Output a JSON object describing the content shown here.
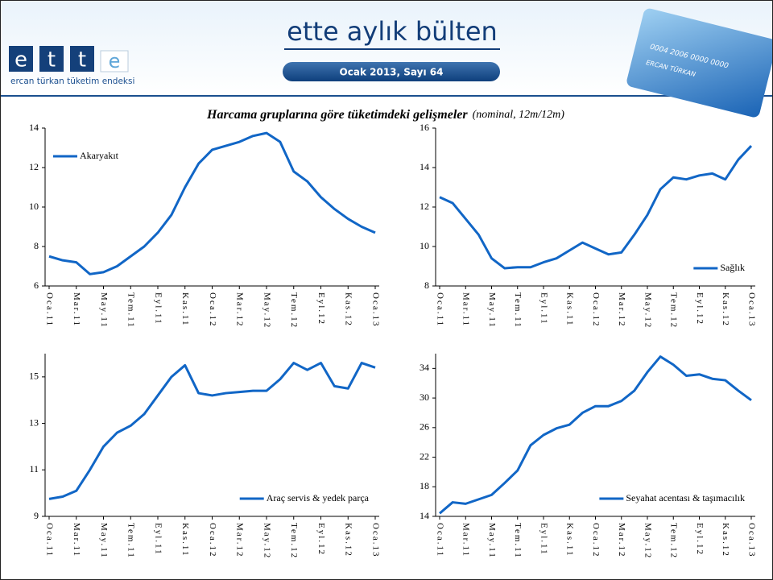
{
  "header": {
    "logo_letters": [
      "e",
      "t",
      "t",
      "e"
    ],
    "logo_caption": "ercan türkan tüketim endeksi",
    "title": "ette aylık bülten",
    "issue": "Ocak 2013, Sayı  64",
    "card_number": "0004 2006 0000 0000",
    "card_name": "ERCAN TÜRKAN"
  },
  "figure": {
    "title": "Harcama gruplarına göre tüketimdeki gelişmeler",
    "subtitle": "(nominal, 12m/12m)"
  },
  "chart_data": [
    {
      "type": "line",
      "categories": [
        "Oca.11",
        null,
        "Mar.11",
        null,
        "May.11",
        null,
        "Tem.11",
        null,
        "Eyl.11",
        null,
        "Kas.11",
        null,
        "Oca.12",
        null,
        "Mar.12",
        null,
        "May.12",
        null,
        "Tem.12",
        null,
        "Eyl.12",
        null,
        "Kas.12",
        null,
        "Oca.13"
      ],
      "series": [
        {
          "name": "Akaryakıt",
          "color": "#1166c6",
          "values": [
            7.5,
            7.3,
            7.2,
            6.6,
            6.7,
            7.0,
            7.5,
            8.0,
            8.7,
            9.6,
            11.0,
            12.2,
            12.9,
            13.1,
            13.3,
            13.6,
            13.75,
            13.3,
            11.8,
            11.3,
            10.5,
            9.9,
            9.4,
            9.0,
            8.7
          ]
        }
      ],
      "ylim": [
        6,
        14
      ],
      "yticks": [
        6,
        8,
        10,
        12,
        14
      ],
      "legend": "upper left"
    },
    {
      "type": "line",
      "categories": [
        "Oca.11",
        null,
        "Mar.11",
        null,
        "May.11",
        null,
        "Tem.11",
        null,
        "Eyl.11",
        null,
        "Kas.11",
        null,
        "Oca.12",
        null,
        "Mar.12",
        null,
        "May.12",
        null,
        "Tem.12",
        null,
        "Eyl.12",
        null,
        "Kas.12",
        null,
        "Oca.13"
      ],
      "series": [
        {
          "name": "Sağlık",
          "color": "#1166c6",
          "values": [
            12.5,
            12.2,
            11.4,
            10.6,
            9.4,
            8.9,
            8.95,
            8.95,
            9.2,
            9.4,
            9.8,
            10.2,
            9.9,
            9.6,
            9.7,
            10.6,
            11.6,
            12.9,
            13.5,
            13.4,
            13.6,
            13.7,
            13.4,
            14.4,
            15.1
          ]
        }
      ],
      "ylim": [
        8,
        16
      ],
      "yticks": [
        8,
        10,
        12,
        14,
        16
      ],
      "legend": "lower right"
    },
    {
      "type": "line",
      "categories": [
        "Oca.11",
        null,
        "Mar.11",
        null,
        "May.11",
        null,
        "Tem.11",
        null,
        "Eyl.11",
        null,
        "Kas.11",
        null,
        "Oca.12",
        null,
        "Mar.12",
        null,
        "May.12",
        null,
        "Tem.12",
        null,
        "Eyl.12",
        null,
        "Kas.12",
        null,
        "Oca.13"
      ],
      "series": [
        {
          "name": "Araç servis & yedek parça",
          "color": "#1166c6",
          "values": [
            9.75,
            9.85,
            10.1,
            11.0,
            12.0,
            12.6,
            12.9,
            13.4,
            14.2,
            15.0,
            15.5,
            14.3,
            14.2,
            14.3,
            14.35,
            14.4,
            14.4,
            14.9,
            15.6,
            15.3,
            15.6,
            14.6,
            14.5,
            15.6,
            15.4
          ]
        }
      ],
      "ylim": [
        9,
        16
      ],
      "yticks": [
        9,
        11,
        13,
        15
      ],
      "legend": "lower right"
    },
    {
      "type": "line",
      "categories": [
        "Oca.11",
        null,
        "Mar.11",
        null,
        "May.11",
        null,
        "Tem.11",
        null,
        "Eyl.11",
        null,
        "Kas.11",
        null,
        "Oca.12",
        null,
        "Mar.12",
        null,
        "May.12",
        null,
        "Tem.12",
        null,
        "Eyl.12",
        null,
        "Kas.12",
        null,
        "Oca.13"
      ],
      "series": [
        {
          "name": "Seyahat acentası & taşımacılık",
          "color": "#1166c6",
          "values": [
            14.4,
            15.9,
            15.7,
            16.3,
            16.9,
            18.5,
            20.2,
            23.6,
            25.0,
            25.9,
            26.4,
            28.0,
            28.9,
            28.9,
            29.6,
            31.0,
            33.5,
            35.6,
            34.5,
            33.0,
            33.2,
            32.6,
            32.4,
            31.0,
            29.7
          ]
        }
      ],
      "ylim": [
        14,
        36
      ],
      "yticks": [
        14,
        18,
        22,
        26,
        30,
        34
      ],
      "legend": "lower right"
    }
  ]
}
